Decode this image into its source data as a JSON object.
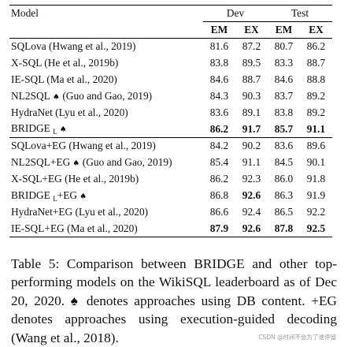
{
  "table": {
    "header": {
      "model": "Model",
      "dev": "Dev",
      "test": "Test",
      "em": "EM",
      "ex": "EX"
    },
    "group1": [
      {
        "name": "SQLova (Hwang et al., 2019)",
        "spade": false,
        "dev_em": "81.6",
        "dev_ex": "87.2",
        "test_em": "80.7",
        "test_ex": "86.2"
      },
      {
        "name": "X-SQL (He et al., 2019b)",
        "spade": false,
        "dev_em": "83.8",
        "dev_ex": "89.5",
        "test_em": "83.3",
        "test_ex": "88.7"
      },
      {
        "name": "IE-SQL (Ma et al., 2020)",
        "spade": false,
        "dev_em": "84.6",
        "dev_ex": "88.7",
        "test_em": "84.6",
        "test_ex": "88.8"
      },
      {
        "name": "NL2SQL",
        "suffix": " (Guo and Gao, 2019)",
        "spade": true,
        "dev_em": "84.3",
        "dev_ex": "90.3",
        "test_em": "83.7",
        "test_ex": "89.2"
      },
      {
        "name": "HydraNet (Lyu et al., 2020)",
        "spade": false,
        "dev_em": "83.6",
        "dev_ex": "89.1",
        "test_em": "83.8",
        "test_ex": "89.2"
      }
    ],
    "bridge1": {
      "name": "BRIDGE",
      "sub": "L",
      "dev_em": "86.2",
      "dev_ex": "91.7",
      "test_em": "85.7",
      "test_ex": "91.1"
    },
    "group2": [
      {
        "name": "SQLova+EG (Hwang et al., 2019)",
        "dev_em": "84.2",
        "dev_ex": "90.2",
        "test_em": "83.6",
        "test_ex": "89.6"
      },
      {
        "name": "NL2SQL+EG",
        "suffix": " (Guo and Gao, 2019)",
        "spade": true,
        "dev_em": "85.4",
        "dev_ex": "91.1",
        "test_em": "84.5",
        "test_ex": "90.1"
      },
      {
        "name": "X-SQL+EG (He et al., 2019b)",
        "dev_em": "86.2",
        "dev_ex": "92.3",
        "test_em": "86.0",
        "test_ex": "91.8"
      }
    ],
    "bridge2": {
      "name": "BRIDGE",
      "sub": "L",
      "suffix": "+EG",
      "dev_em": "86.8",
      "dev_ex": "92.6",
      "test_em": "86.3",
      "test_ex": "91.9"
    },
    "group3": [
      {
        "name": "HydraNet+EG (Lyu et al., 2020)",
        "dev_em": "86.6",
        "dev_ex": "92.4",
        "test_em": "86.5",
        "test_ex": "92.2"
      }
    ],
    "last": {
      "name": "IE-SQL+EG (Ma et al., 2020)",
      "dev_em": "87.9",
      "dev_ex": "92.6",
      "test_em": "87.8",
      "test_ex": "92.5"
    },
    "spade_glyph": "♠"
  },
  "caption": {
    "text": "Table 5: Comparison between BRIDGE and other top-performing models on the WikiSQL leaderboard as of Dec 20, 2020. ♠ denotes approaches using DB content. +EG denotes approaches using execution-guided decoding (Wang et al., 2018)."
  },
  "watermark": "CSDN @时间不会为了谁停留"
}
